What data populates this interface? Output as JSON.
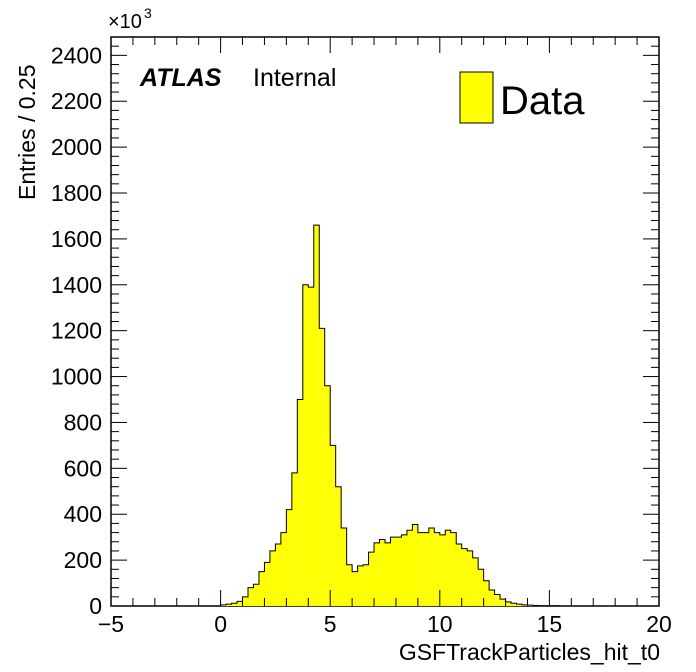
{
  "chart_data": {
    "type": "bar",
    "title": "",
    "xlabel": "GSFTrackParticles_hit_t0",
    "ylabel": "Entries / 0.25",
    "xlim": [
      -5,
      20
    ],
    "ylim": [
      0,
      2480
    ],
    "y_multiplier_label": "×10",
    "y_multiplier_exponent": "3",
    "x_ticks": [
      -5,
      0,
      5,
      10,
      15,
      20
    ],
    "x_tick_labels": [
      "−5",
      "0",
      "5",
      "10",
      "15",
      "20"
    ],
    "y_ticks": [
      0,
      200,
      400,
      600,
      800,
      1000,
      1200,
      1400,
      1600,
      1800,
      2000,
      2200,
      2400
    ],
    "y_tick_labels": [
      "0",
      "200",
      "400",
      "600",
      "800",
      "1000",
      "1200",
      "1400",
      "1600",
      "1800",
      "2000",
      "2200",
      "2400"
    ],
    "bin_width": 0.25,
    "bin_start": 0,
    "series": [
      {
        "name": "Data",
        "color": "#ffff00",
        "edge_color": "#000000",
        "values": [
          5,
          8,
          12,
          20,
          40,
          80,
          95,
          150,
          190,
          240,
          270,
          320,
          420,
          580,
          900,
          1400,
          1390,
          1660,
          1210,
          960,
          700,
          520,
          340,
          180,
          150,
          175,
          180,
          235,
          275,
          290,
          275,
          300,
          300,
          310,
          330,
          355,
          320,
          320,
          340,
          320,
          310,
          330,
          320,
          270,
          250,
          240,
          210,
          160,
          110,
          70,
          50,
          30,
          18,
          12,
          8,
          5,
          4,
          2,
          1,
          1,
          1,
          1,
          0,
          0,
          0,
          0,
          0,
          0,
          0,
          0
        ]
      }
    ],
    "legend_position": "top-right",
    "grid": false
  },
  "annotation": {
    "experiment": "ATLAS",
    "status": "Internal"
  },
  "legend": {
    "label": "Data"
  }
}
